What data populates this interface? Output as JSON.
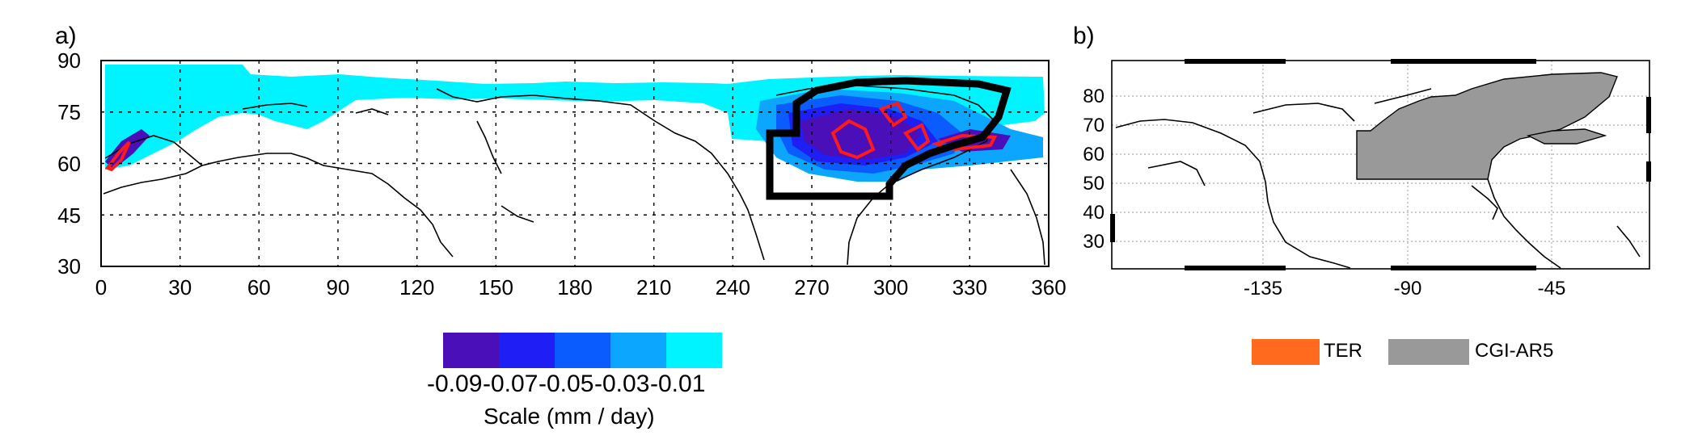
{
  "panel_a": {
    "label": "a)",
    "x_ticks": [
      "0",
      "30",
      "60",
      "90",
      "120",
      "150",
      "180",
      "210",
      "240",
      "270",
      "300",
      "330",
      "360"
    ],
    "y_ticks": [
      "90",
      "75",
      "60",
      "45",
      "30"
    ],
    "colorbar": {
      "colors": [
        "#4a0fb8",
        "#1e1ef5",
        "#0a5cff",
        "#0ca6ff",
        "#00f4ff"
      ],
      "labels": [
        "-0.09",
        "-0.07",
        "-0.05",
        "-0.03",
        "-0.01"
      ],
      "title": "Scale (mm / day)"
    },
    "colors": {
      "outline_box": "#000000",
      "contour": "#ff1a1a"
    }
  },
  "panel_b": {
    "label": "b)",
    "x_ticks": [
      "-135",
      "-90",
      "-45"
    ],
    "y_ticks": [
      "80",
      "70",
      "60",
      "50",
      "40",
      "30"
    ],
    "legend": [
      {
        "name": "TER",
        "color": "#ff6a1f"
      },
      {
        "name": "CGI-AR5",
        "color": "#999999"
      }
    ]
  }
}
